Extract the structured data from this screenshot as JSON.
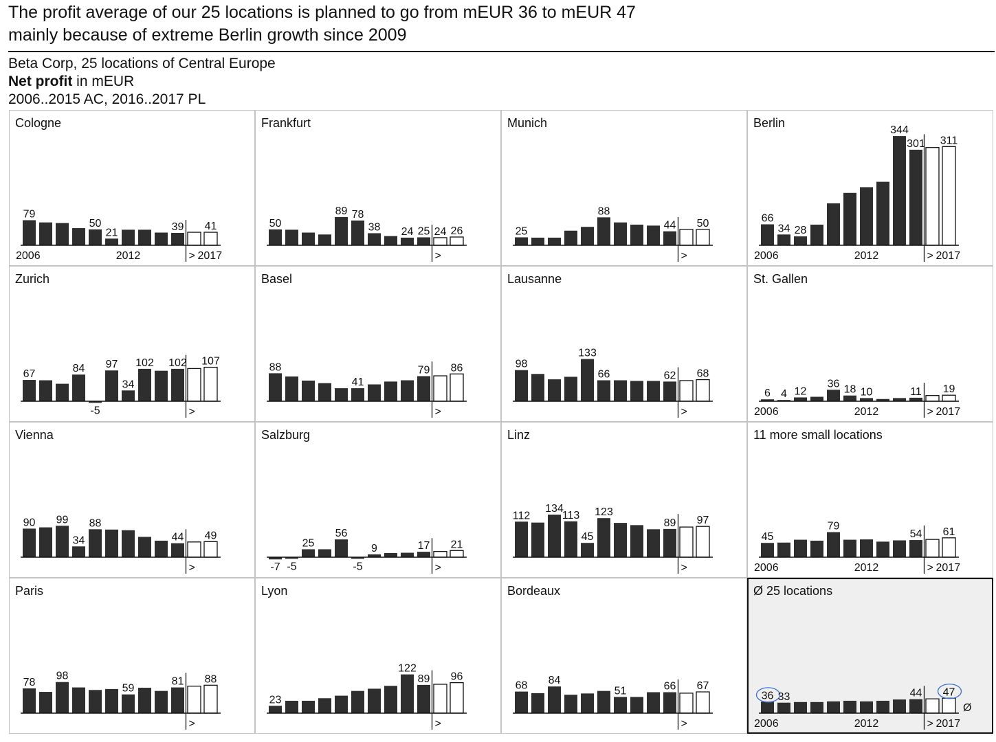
{
  "header": {
    "title_line1": "The profit average of our 25 locations is planned to go from mEUR 36 to mEUR 47",
    "title_line2": "mainly because of extreme Berlin growth since 2009",
    "company": "Beta Corp, 25 locations of Central Europe",
    "measure_bold": "Net profit",
    "measure_unit": " in mEUR",
    "period": "2006..2015 AC, 2016..2017 PL"
  },
  "colors": {
    "actual": "#2e2e2e",
    "plan_fill": "#ffffff",
    "avg_panel_bg": "#efefef",
    "highlight_ring": "#3b6fd8"
  },
  "chart_data": {
    "type": "bar",
    "years": [
      2006,
      2007,
      2008,
      2009,
      2010,
      2011,
      2012,
      2013,
      2014,
      2015,
      2016,
      2017
    ],
    "actual_years": "2006..2015",
    "plan_years": "2016..2017",
    "plan_marker": ">",
    "average_symbol": "Ø",
    "axis_labels": {
      "start": "2006",
      "mid": "2012",
      "end": "2017"
    },
    "panels": [
      {
        "name": "Cologne",
        "values": [
          79,
          72,
          70,
          54,
          50,
          21,
          49,
          49,
          40,
          39,
          41,
          41
        ],
        "labeled": [
          0,
          4,
          5,
          9,
          11
        ],
        "show_years": true
      },
      {
        "name": "Frankfurt",
        "values": [
          50,
          49,
          40,
          34,
          89,
          78,
          38,
          29,
          24,
          25,
          24,
          26
        ],
        "labeled": [
          0,
          4,
          5,
          6,
          8,
          9,
          10,
          11
        ],
        "show_years": false
      },
      {
        "name": "Munich",
        "values": [
          25,
          24,
          24,
          46,
          58,
          88,
          72,
          65,
          62,
          44,
          50,
          50
        ],
        "labeled": [
          0,
          5,
          9,
          11
        ],
        "show_years": false
      },
      {
        "name": "Berlin",
        "values": [
          66,
          34,
          28,
          65,
          132,
          165,
          183,
          200,
          344,
          301,
          308,
          311
        ],
        "labeled": [
          0,
          1,
          2,
          8,
          9,
          11
        ],
        "show_years": true
      },
      {
        "name": "Zurich",
        "values": [
          67,
          66,
          55,
          84,
          -5,
          97,
          34,
          102,
          96,
          102,
          103,
          107
        ],
        "labeled": [
          0,
          3,
          4,
          5,
          6,
          7,
          9,
          11
        ],
        "show_years": false
      },
      {
        "name": "Basel",
        "values": [
          88,
          78,
          65,
          57,
          41,
          41,
          53,
          62,
          66,
          79,
          80,
          86
        ],
        "labeled": [
          0,
          5,
          9,
          11
        ],
        "show_years": false
      },
      {
        "name": "Lausanne",
        "values": [
          98,
          86,
          69,
          77,
          133,
          66,
          66,
          64,
          64,
          62,
          65,
          68
        ],
        "labeled": [
          0,
          4,
          5,
          9,
          11
        ],
        "show_years": false
      },
      {
        "name": "St. Gallen",
        "values": [
          6,
          4,
          12,
          14,
          36,
          18,
          10,
          7,
          10,
          11,
          18,
          19
        ],
        "labeled": [
          0,
          1,
          2,
          4,
          5,
          6,
          9,
          11
        ],
        "show_years": true
      },
      {
        "name": "Vienna",
        "values": [
          90,
          94,
          99,
          34,
          88,
          87,
          85,
          64,
          52,
          44,
          48,
          49
        ],
        "labeled": [
          0,
          2,
          3,
          4,
          9,
          11
        ],
        "show_years": false
      },
      {
        "name": "Salzburg",
        "values": [
          -7,
          -5,
          25,
          25,
          56,
          -5,
          9,
          13,
          14,
          17,
          18,
          21
        ],
        "labeled": [
          0,
          1,
          2,
          4,
          5,
          6,
          9,
          11
        ],
        "show_years": false
      },
      {
        "name": "Linz",
        "values": [
          112,
          109,
          134,
          113,
          45,
          123,
          108,
          101,
          88,
          89,
          95,
          97
        ],
        "labeled": [
          0,
          2,
          3,
          4,
          5,
          9,
          11
        ],
        "show_years": false
      },
      {
        "name": "11 more small locations",
        "values": [
          45,
          46,
          55,
          52,
          79,
          55,
          56,
          49,
          53,
          54,
          56,
          61
        ],
        "labeled": [
          0,
          4,
          9,
          11
        ],
        "show_years": true
      },
      {
        "name": "Paris",
        "values": [
          78,
          67,
          98,
          81,
          73,
          76,
          59,
          80,
          70,
          81,
          85,
          88
        ],
        "labeled": [
          0,
          2,
          6,
          9,
          11
        ],
        "show_years": false
      },
      {
        "name": "Lyon",
        "values": [
          23,
          39,
          39,
          47,
          55,
          70,
          77,
          86,
          122,
          89,
          91,
          96
        ],
        "labeled": [
          0,
          8,
          9,
          11
        ],
        "show_years": false
      },
      {
        "name": "Bordeaux",
        "values": [
          68,
          63,
          84,
          58,
          62,
          70,
          51,
          51,
          66,
          66,
          63,
          67
        ],
        "labeled": [
          0,
          2,
          6,
          9,
          11
        ],
        "show_years": false
      },
      {
        "name": "Ø 25 locations",
        "values": [
          36,
          33,
          35,
          35,
          37,
          39,
          37,
          39,
          43,
          44,
          45,
          47
        ],
        "labeled": [
          0,
          1,
          9,
          11
        ],
        "show_years": true,
        "is_average": true,
        "circled": [
          0,
          11
        ]
      }
    ]
  }
}
